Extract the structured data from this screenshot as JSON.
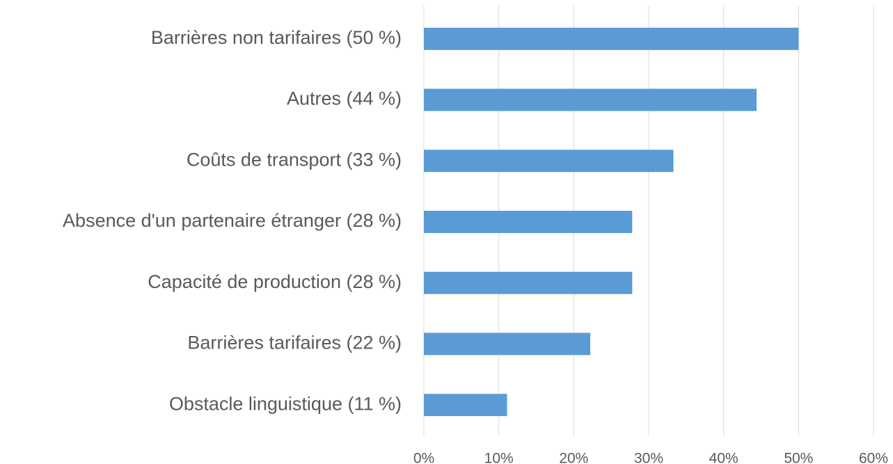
{
  "chart_data": {
    "type": "bar",
    "orientation": "horizontal",
    "categories": [
      "Barrières non tarifaires (50 %)",
      "Autres (44 %)",
      "Coûts de transport (33 %)",
      "Absence d'un partenaire étranger (28 %)",
      "Capacité de production (28 %)",
      "Barrières tarifaires (22 %)",
      "Obstacle linguistique (11 %)"
    ],
    "values": [
      50,
      44.4,
      33.3,
      27.8,
      27.8,
      22.2,
      11.1
    ],
    "color": "#5b9bd5",
    "xlim": [
      0,
      60
    ],
    "xticks": [
      {
        "value": 0,
        "label": "0%"
      },
      {
        "value": 10,
        "label": "10%"
      },
      {
        "value": 20,
        "label": "20%"
      },
      {
        "value": 30,
        "label": "30%"
      },
      {
        "value": 40,
        "label": "40%"
      },
      {
        "value": 50,
        "label": "50%"
      },
      {
        "value": 60,
        "label": "60%"
      }
    ],
    "grid": true
  }
}
